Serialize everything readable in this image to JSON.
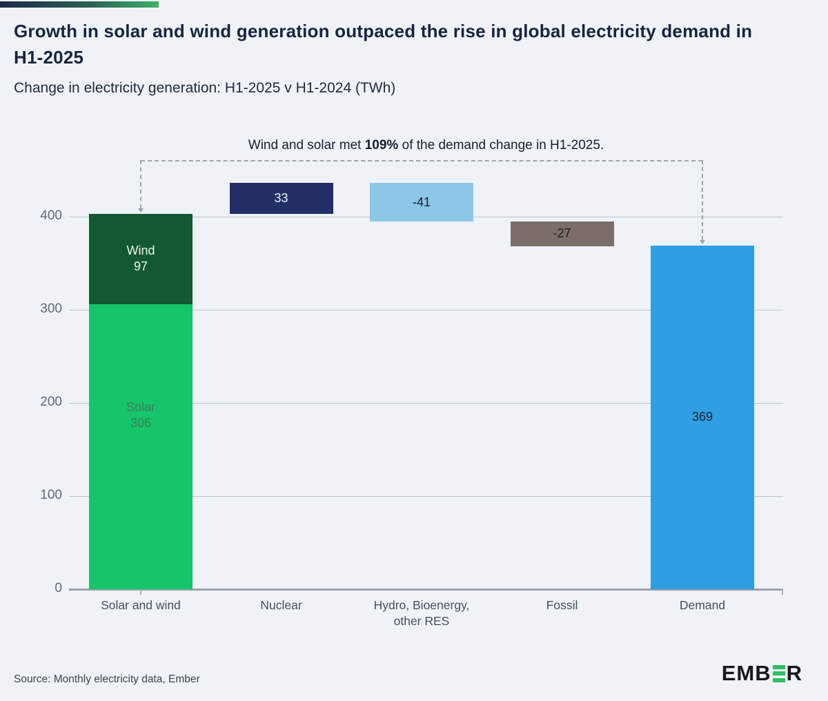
{
  "header": {
    "title": "Growth in solar and wind generation outpaced the rise in global electricity demand in H1-2025",
    "subtitle": "Change in electricity generation: H1-2025 v H1-2024 (TWh)"
  },
  "chart_data": {
    "type": "bar",
    "subtype": "waterfall",
    "title": "Change in electricity generation: H1-2025 v H1-2024 (TWh)",
    "unit": "TWh",
    "ylim": [
      0,
      436
    ],
    "yticks": [
      0,
      100,
      200,
      300,
      400
    ],
    "grid": true,
    "legend": "none",
    "categories": [
      "Solar and wind",
      "Nuclear",
      "Hydro, Bioenergy, other RES",
      "Fossil",
      "Demand"
    ],
    "bars": [
      {
        "category": "Solar and wind",
        "label_lines": [
          "Solar and wind"
        ],
        "segments": [
          {
            "name": "Solar",
            "value": 306,
            "from": 0,
            "to": 306,
            "color": "#16c46a",
            "label_lines": [
              "Solar",
              "306"
            ],
            "label_color": "#3a7f5d",
            "label_dy": -45
          },
          {
            "name": "Wind",
            "value": 97,
            "from": 306,
            "to": 403,
            "color": "#125831",
            "label_lines": [
              "Wind",
              "97"
            ],
            "label_color": "#eef6f1"
          }
        ]
      },
      {
        "category": "Nuclear",
        "label_lines": [
          "Nuclear"
        ],
        "segments": [
          {
            "name": "Nuclear",
            "value": 33,
            "from": 403,
            "to": 436,
            "color": "#222f66",
            "label_lines": [
              "33"
            ],
            "label_color": "#f2f5fa"
          }
        ]
      },
      {
        "category": "Hydro, Bioenergy, other RES",
        "label_lines": [
          "Hydro, Bioenergy,",
          "other RES"
        ],
        "segments": [
          {
            "name": "Hydro, Bioenergy, other RES",
            "value": -41,
            "from": 395,
            "to": 436,
            "color": "#8dc7e8",
            "label_lines": [
              "-41"
            ],
            "label_color": "#101c2b"
          }
        ]
      },
      {
        "category": "Fossil",
        "label_lines": [
          "Fossil"
        ],
        "segments": [
          {
            "name": "Fossil",
            "value": -27,
            "from": 368,
            "to": 395,
            "color": "#7b6e69",
            "label_lines": [
              "-27"
            ],
            "label_color": "#181d23"
          }
        ]
      },
      {
        "category": "Demand",
        "label_lines": [
          "Demand"
        ],
        "segments": [
          {
            "name": "Demand",
            "value": 369,
            "from": 0,
            "to": 369,
            "color": "#2f9ee3",
            "label_lines": [
              "369"
            ],
            "label_color": "#0e2133"
          }
        ]
      }
    ],
    "annotation": {
      "text_prefix": "Wind and solar met ",
      "highlight": "109%",
      "text_suffix": " of the demand change in H1-2025.",
      "connects": [
        "Solar and wind",
        "Demand"
      ]
    }
  },
  "footer": {
    "source": "Source: Monthly electricity data, Ember",
    "logo": {
      "left": "EMB",
      "green_e": "green-e-icon",
      "right": "R"
    }
  },
  "colors": {
    "background": "#eff3f7",
    "title": "#17243e",
    "accent_gradient_start": "#1b2a4a",
    "accent_gradient_end": "#3fb069",
    "gridline": "#bcc3cc",
    "baseline": "#9aa2ad",
    "bracket": "#9ba4ae",
    "logo_green": "#2fbf63"
  }
}
